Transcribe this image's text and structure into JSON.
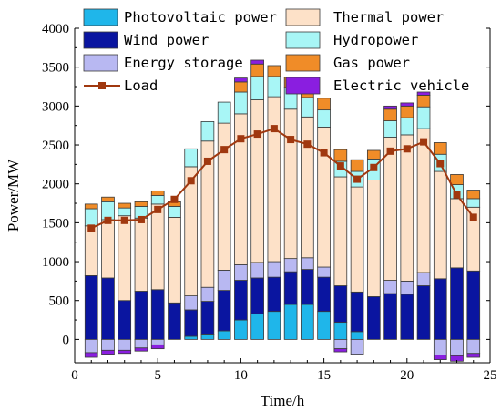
{
  "chart_data": {
    "type": "bar",
    "stacked": true,
    "xlabel": "Time/h",
    "ylabel": "Power/MW",
    "xlim": [
      0,
      25
    ],
    "ylim": [
      -300,
      4000
    ],
    "xticks": [
      0,
      5,
      10,
      15,
      20,
      25
    ],
    "yticks": [
      0,
      500,
      1000,
      1500,
      2000,
      2500,
      3000,
      3500,
      4000
    ],
    "legend_position": "top",
    "x": [
      1,
      2,
      3,
      4,
      5,
      6,
      7,
      8,
      9,
      10,
      11,
      12,
      13,
      14,
      15,
      16,
      17,
      18,
      19,
      20,
      21,
      22,
      23,
      24
    ],
    "series": [
      {
        "name": "Photovoltaic power",
        "color": "#1fb6ea",
        "values": [
          0,
          0,
          0,
          0,
          0,
          0,
          40,
          70,
          110,
          250,
          330,
          360,
          450,
          450,
          360,
          220,
          100,
          0,
          0,
          0,
          0,
          0,
          0,
          0
        ]
      },
      {
        "name": "Wind power",
        "color": "#0a15a0",
        "values": [
          820,
          790,
          500,
          620,
          640,
          470,
          340,
          420,
          520,
          510,
          460,
          440,
          420,
          450,
          440,
          470,
          510,
          550,
          590,
          580,
          690,
          780,
          920,
          880
        ]
      },
      {
        "name": "Energy storage",
        "color": "#b8b8f2",
        "values": [
          -170,
          -140,
          -140,
          -110,
          -70,
          0,
          180,
          180,
          260,
          200,
          200,
          200,
          170,
          150,
          130,
          -120,
          -190,
          0,
          170,
          170,
          170,
          -200,
          -210,
          -180
        ]
      },
      {
        "name": "Thermal power",
        "color": "#fde1c8",
        "values": [
          640,
          750,
          1090,
          940,
          1100,
          1100,
          1660,
          1880,
          1890,
          1940,
          2090,
          2120,
          1920,
          1810,
          1800,
          1400,
          1350,
          1500,
          1840,
          1880,
          1850,
          1380,
          890,
          820
        ]
      },
      {
        "name": "Hydropower",
        "color": "#a8f6f6",
        "values": [
          220,
          230,
          100,
          150,
          110,
          140,
          230,
          250,
          270,
          280,
          300,
          260,
          280,
          250,
          220,
          200,
          200,
          270,
          210,
          220,
          280,
          220,
          180,
          110
        ]
      },
      {
        "name": "Gas power",
        "color": "#f08c28",
        "values": [
          60,
          60,
          60,
          60,
          60,
          60,
          0,
          0,
          0,
          130,
          160,
          140,
          130,
          120,
          150,
          150,
          150,
          110,
          150,
          150,
          150,
          150,
          130,
          110
        ]
      },
      {
        "name": "Electric vehicle",
        "color": "#8a1ee0",
        "values": [
          -60,
          -50,
          -40,
          -40,
          -50,
          0,
          0,
          0,
          0,
          50,
          50,
          0,
          0,
          0,
          0,
          -40,
          0,
          0,
          40,
          40,
          40,
          -60,
          -70,
          -50
        ]
      },
      {
        "name": "Load",
        "type": "line",
        "color": "#a0380f",
        "values": [
          1430,
          1530,
          1530,
          1540,
          1670,
          1800,
          2040,
          2290,
          2440,
          2580,
          2640,
          2710,
          2570,
          2510,
          2400,
          2230,
          2060,
          2210,
          2420,
          2450,
          2540,
          2260,
          1860,
          1570
        ]
      }
    ]
  }
}
